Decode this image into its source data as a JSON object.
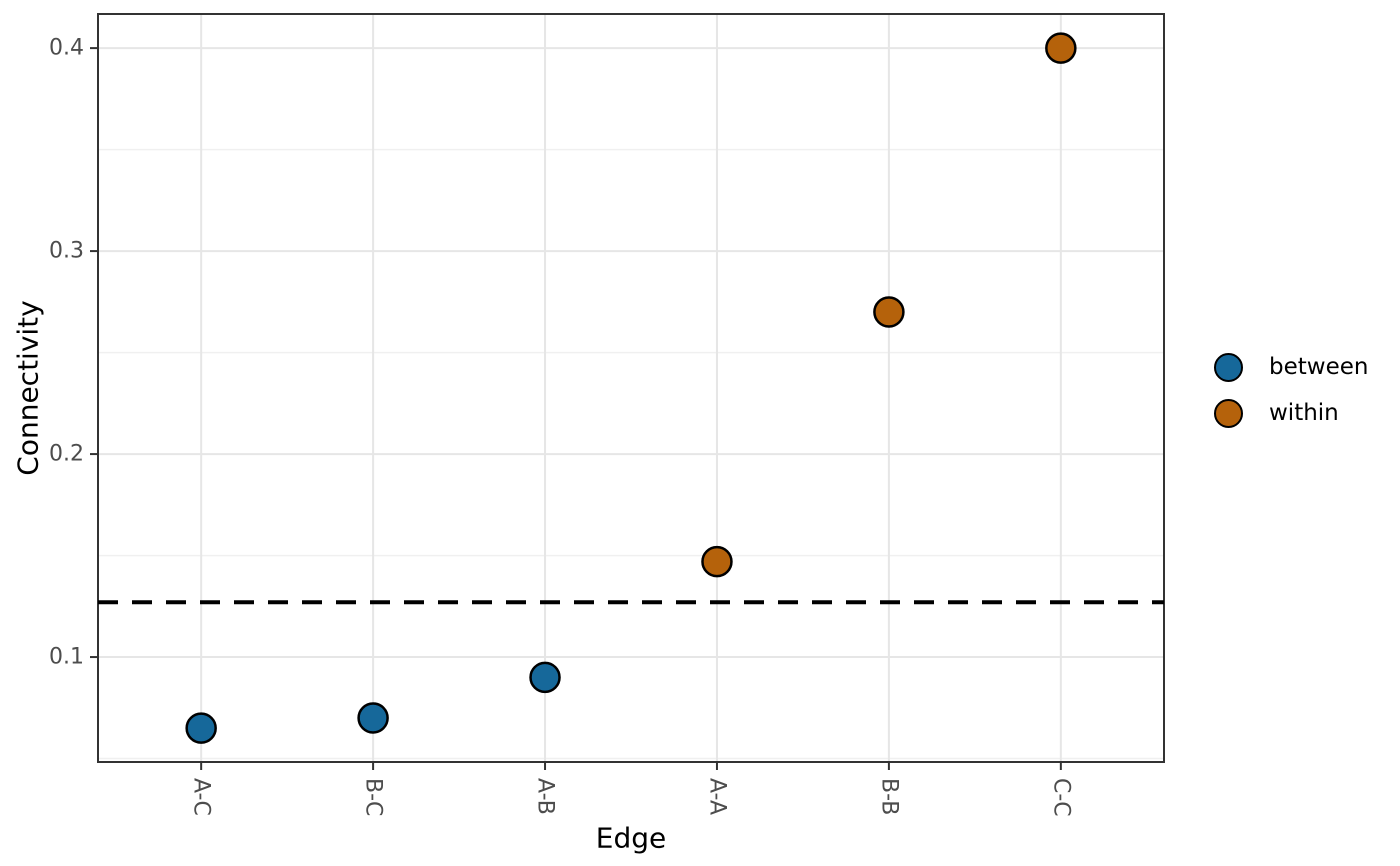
{
  "chart_data": {
    "type": "scatter",
    "title": "",
    "xlabel": "Edge",
    "ylabel": "Connectivity",
    "categories": [
      "A-C",
      "B-C",
      "A-B",
      "A-A",
      "B-B",
      "C-C"
    ],
    "series": [
      {
        "name": "between",
        "color": "#16689a",
        "points": [
          {
            "category": "A-C",
            "value": 0.065
          },
          {
            "category": "B-C",
            "value": 0.07
          },
          {
            "category": "A-B",
            "value": 0.09
          }
        ]
      },
      {
        "name": "within",
        "color": "#b5620b",
        "points": [
          {
            "category": "A-A",
            "value": 0.147
          },
          {
            "category": "B-B",
            "value": 0.27
          },
          {
            "category": "C-C",
            "value": 0.4
          }
        ]
      }
    ],
    "reference_line": {
      "value": 0.127,
      "style": "dashed",
      "color": "#000000"
    },
    "y_ticks": [
      "0.1",
      "0.2",
      "0.3",
      "0.4"
    ],
    "y_tick_values": [
      0.1,
      0.2,
      0.3,
      0.4
    ],
    "y_minor_tick_values": [
      0.05,
      0.15,
      0.25,
      0.35
    ],
    "ylim": [
      0.0483,
      0.4168
    ],
    "grid": "horizontal major+minor, vertical major only",
    "legend": {
      "position": "right",
      "entries": [
        {
          "label": "between",
          "color": "#16689a"
        },
        {
          "label": "within",
          "color": "#b5620b"
        }
      ]
    }
  },
  "style": {
    "background": "#ffffff",
    "panel_border": "#333333",
    "grid_major": "#e6e6e6",
    "grid_minor": "#f0f0f0",
    "tick_mark": "#333333",
    "tick_label": "#4d4d4d",
    "axis_title": "#000000",
    "point_stroke": "#000000"
  }
}
